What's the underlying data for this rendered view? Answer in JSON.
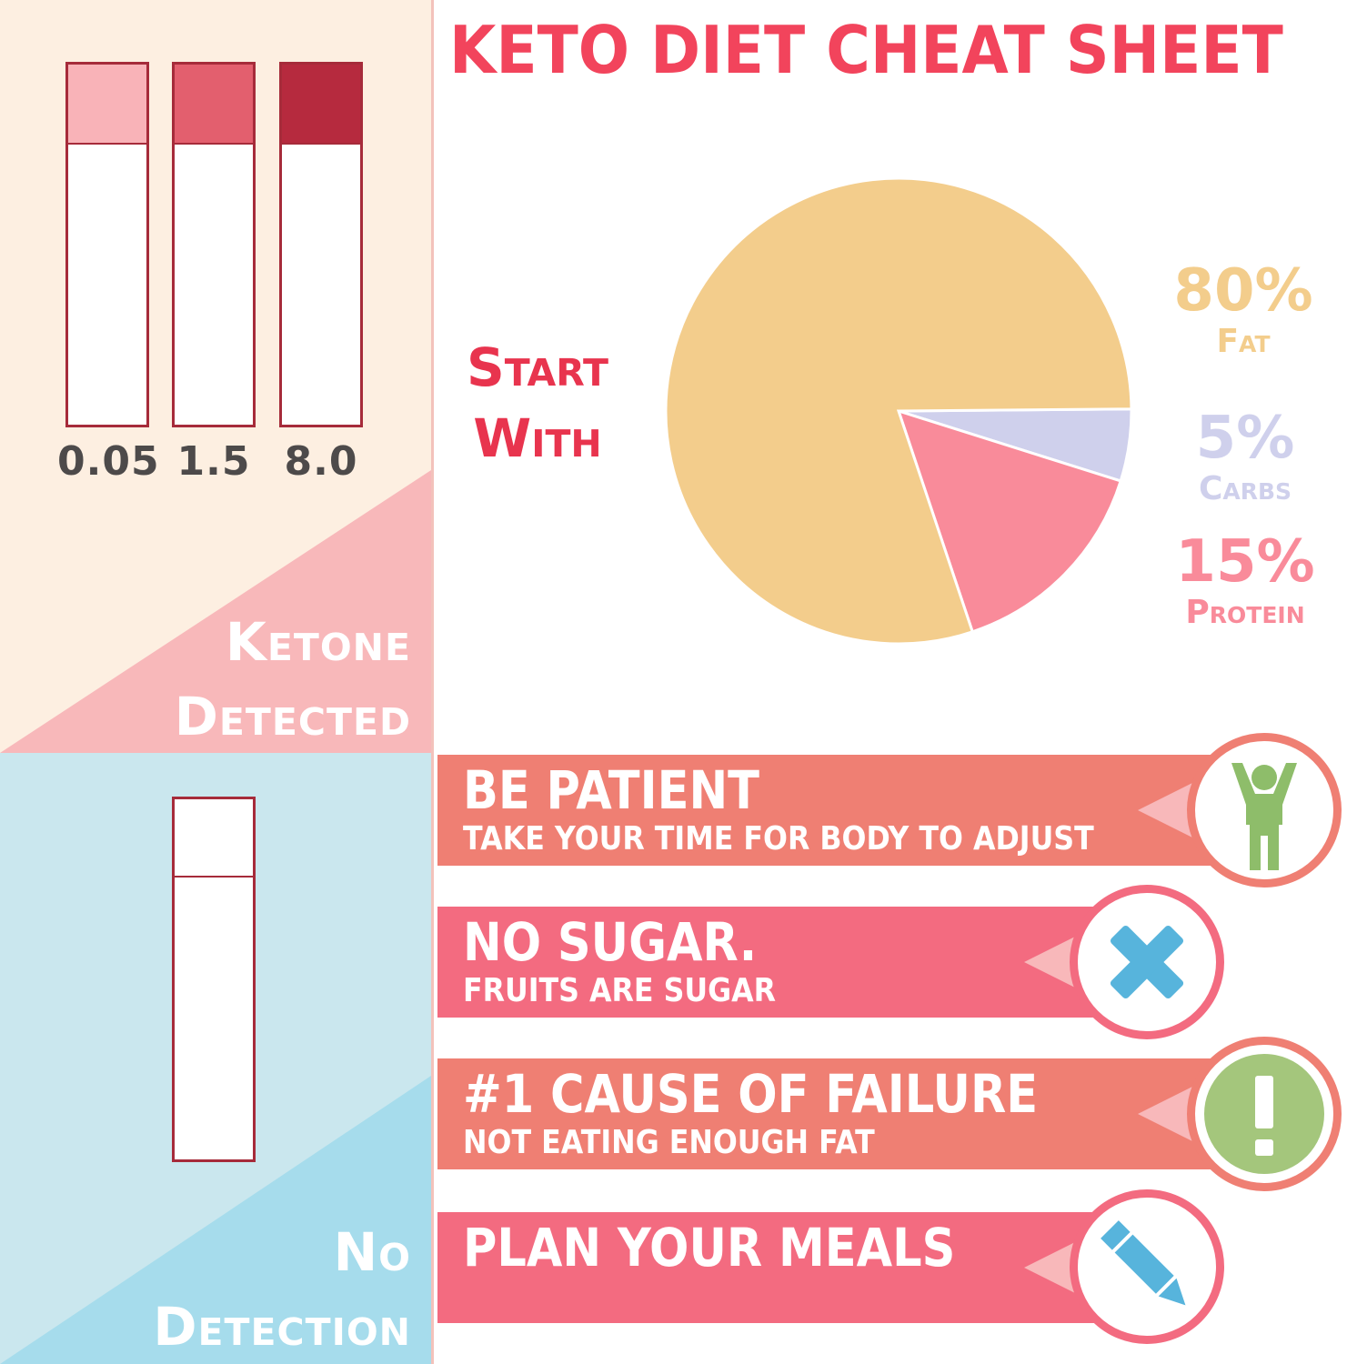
{
  "title": "KETO DIET CHEAT SHEET",
  "ketone_panel": {
    "title_line1": "Ketone",
    "title_line2": "Detected",
    "strips": [
      {
        "label": "0.05",
        "color": "#f9b3b8"
      },
      {
        "label": "1.5",
        "color": "#e35f6e"
      },
      {
        "label": "8.0",
        "color": "#b62a3e"
      }
    ]
  },
  "no_detection_panel": {
    "title_line1": "No",
    "title_line2": "Detection"
  },
  "start_with": {
    "line1": "Start",
    "line2": "With"
  },
  "macros": [
    {
      "pct": "80%",
      "name": "Fat",
      "value": 80,
      "color": "#f3cd8c"
    },
    {
      "pct": "5%",
      "name": "Carbs",
      "value": 5,
      "color": "#cfd0ec"
    },
    {
      "pct": "15%",
      "name": "Protein",
      "value": 15,
      "color": "#f98b9a"
    }
  ],
  "tips": [
    {
      "heading": "BE PATIENT",
      "subtext": "TAKE YOUR TIME FOR BODY TO ADJUST",
      "icon": "person-arms-up-icon"
    },
    {
      "heading": "NO SUGAR.",
      "subtext": "FRUITS ARE SUGAR",
      "icon": "cross-icon"
    },
    {
      "heading": "#1 CAUSE OF FAILURE",
      "subtext": "NOT EATING ENOUGH FAT",
      "icon": "exclamation-icon"
    },
    {
      "heading": "PLAN YOUR MEALS",
      "subtext": "",
      "icon": "pencil-icon"
    }
  ],
  "colors": {
    "title": "#f2445c",
    "tip_orange": "#ef7f73",
    "tip_pink": "#f36b80",
    "ketone_bg": "#fdefe1",
    "ketone_triangle": "#f8b8ba",
    "nodetect_bg": "#cae7ee",
    "nodetect_triangle": "#a6dcec"
  }
}
